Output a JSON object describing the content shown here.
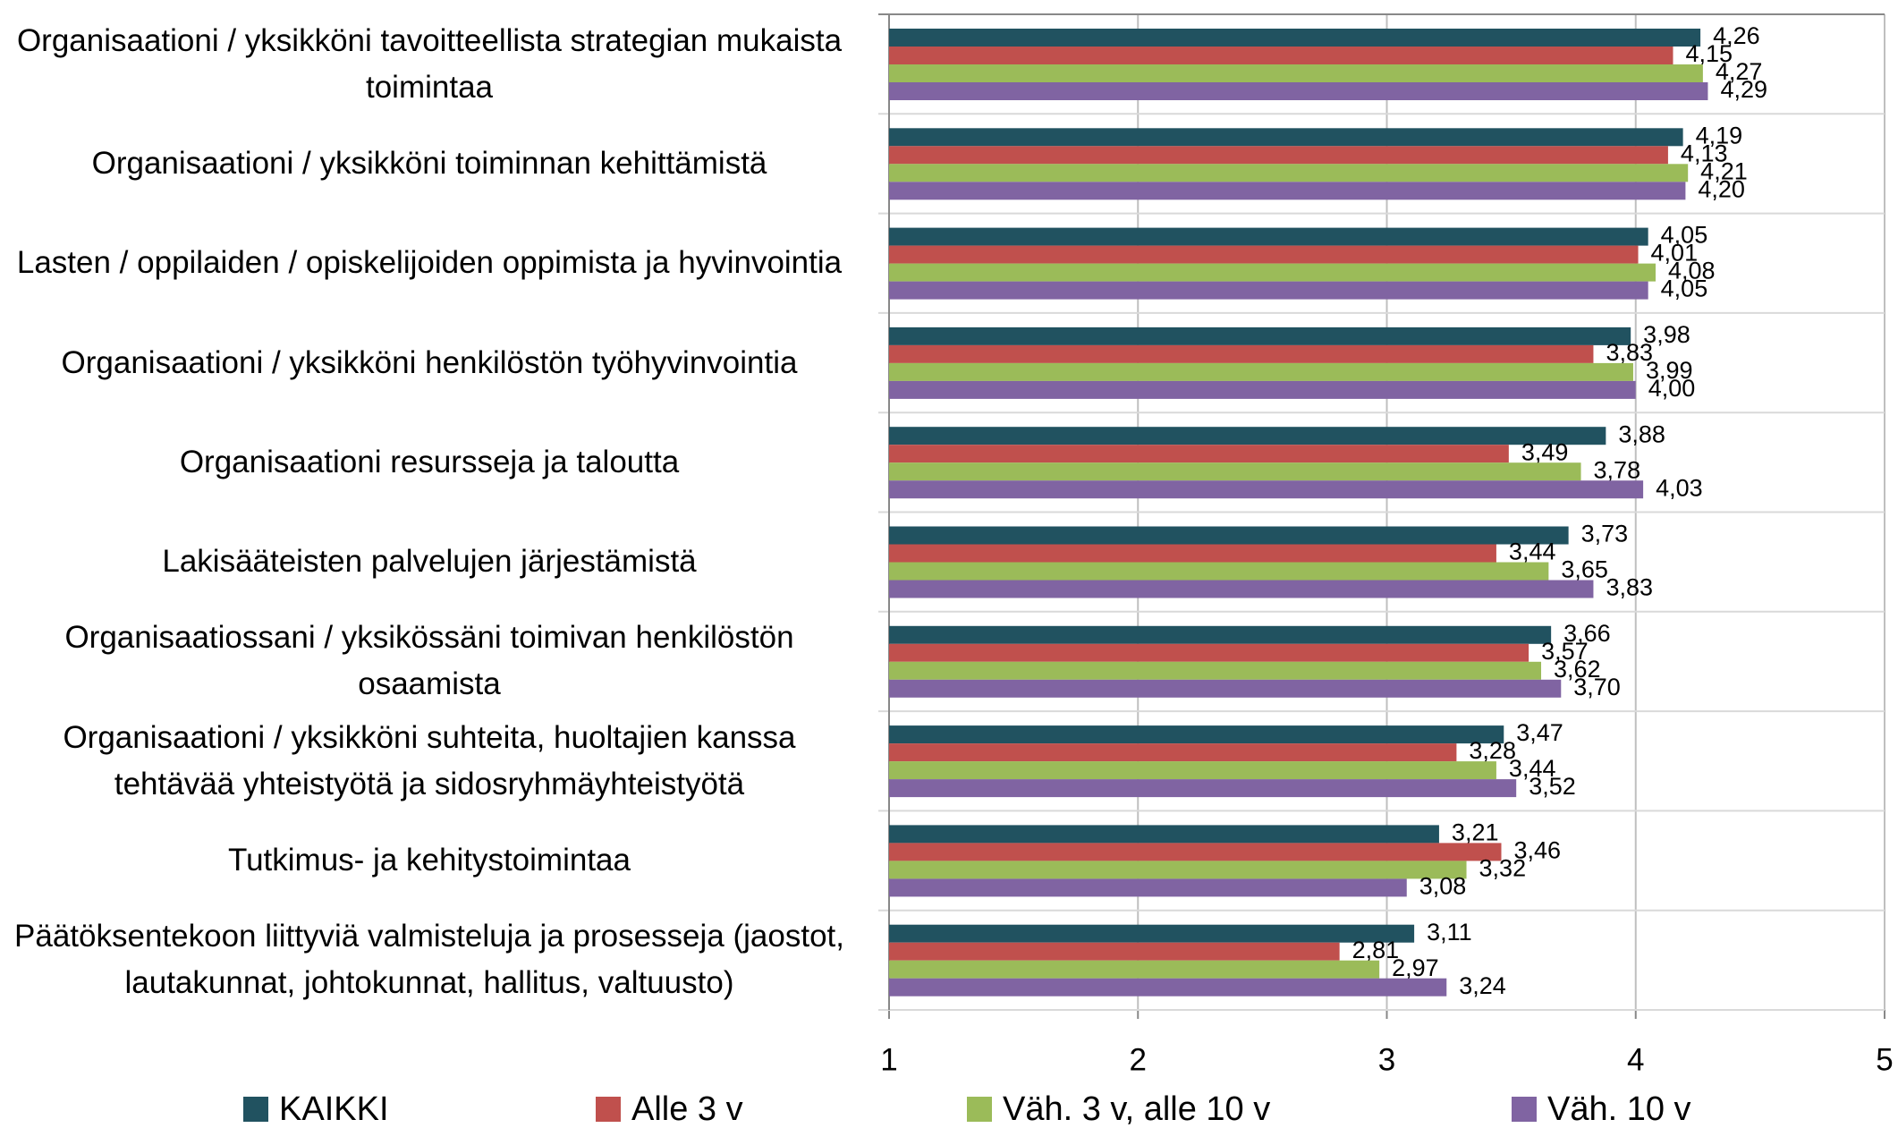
{
  "chart_data": {
    "type": "hbar",
    "categories": [
      "Organisaationi / yksikköni tavoitteellista strategian mukaista toimintaa",
      "Organisaationi / yksikköni toiminnan kehittämistä",
      "Lasten / oppilaiden / opiskelijoiden oppimista ja hyvinvointia",
      "Organisaationi / yksikköni henkilöstön työhyvinvointia",
      "Organisaationi resursseja ja taloutta",
      "Lakisääteisten palvelujen järjestämistä",
      "Organisaatiossani / yksikössäni toimivan henkilöstön osaamista",
      "Organisaationi / yksikköni suhteita, huoltajien kanssa tehtävää yhteistyötä ja sidosryhmäyhteistyötä",
      "Tutkimus- ja kehitystoimintaa",
      "Päätöksentekoon liittyviä valmisteluja ja prosesseja (jaostot, lautakunnat, johtokunnat, hallitus, valtuusto)"
    ],
    "series": [
      {
        "name": "KAIKKI",
        "color": "#215260",
        "values": [
          4.26,
          4.19,
          4.05,
          3.98,
          3.88,
          3.73,
          3.66,
          3.47,
          3.21,
          3.11
        ],
        "value_labels": [
          "4,26",
          "4,19",
          "4,05",
          "3,98",
          "3,88",
          "3,73",
          "3,66",
          "3,47",
          "3,21",
          "3,11"
        ]
      },
      {
        "name": "Alle 3 v",
        "color": "#c0504d",
        "values": [
          4.15,
          4.13,
          4.01,
          3.83,
          3.49,
          3.44,
          3.57,
          3.28,
          3.46,
          2.81
        ],
        "value_labels": [
          "4,15",
          "4,13",
          "4,01",
          "3,83",
          "3,49",
          "3,44",
          "3,57",
          "3,28",
          "3,46",
          "2,81"
        ]
      },
      {
        "name": "Väh. 3 v, alle 10 v",
        "color": "#9bbb59",
        "values": [
          4.27,
          4.21,
          4.08,
          3.99,
          3.78,
          3.65,
          3.62,
          3.44,
          3.32,
          2.97
        ],
        "value_labels": [
          "4,27",
          "4,21",
          "4,08",
          "3,99",
          "3,78",
          "3,65",
          "3,62",
          "3,44",
          "3,32",
          "2,97"
        ]
      },
      {
        "name": "Väh. 10 v",
        "color": "#8064a2",
        "values": [
          4.29,
          4.2,
          4.05,
          4.0,
          4.03,
          3.83,
          3.7,
          3.52,
          3.08,
          3.24
        ],
        "value_labels": [
          "4,29",
          "4,20",
          "4,05",
          "4,00",
          "4,03",
          "3,83",
          "3,70",
          "3,52",
          "3,08",
          "3,24"
        ]
      }
    ],
    "xlim": [
      1,
      5
    ],
    "xticks": [
      1,
      2,
      3,
      4,
      5
    ],
    "grid": true,
    "legend": "bottom"
  }
}
